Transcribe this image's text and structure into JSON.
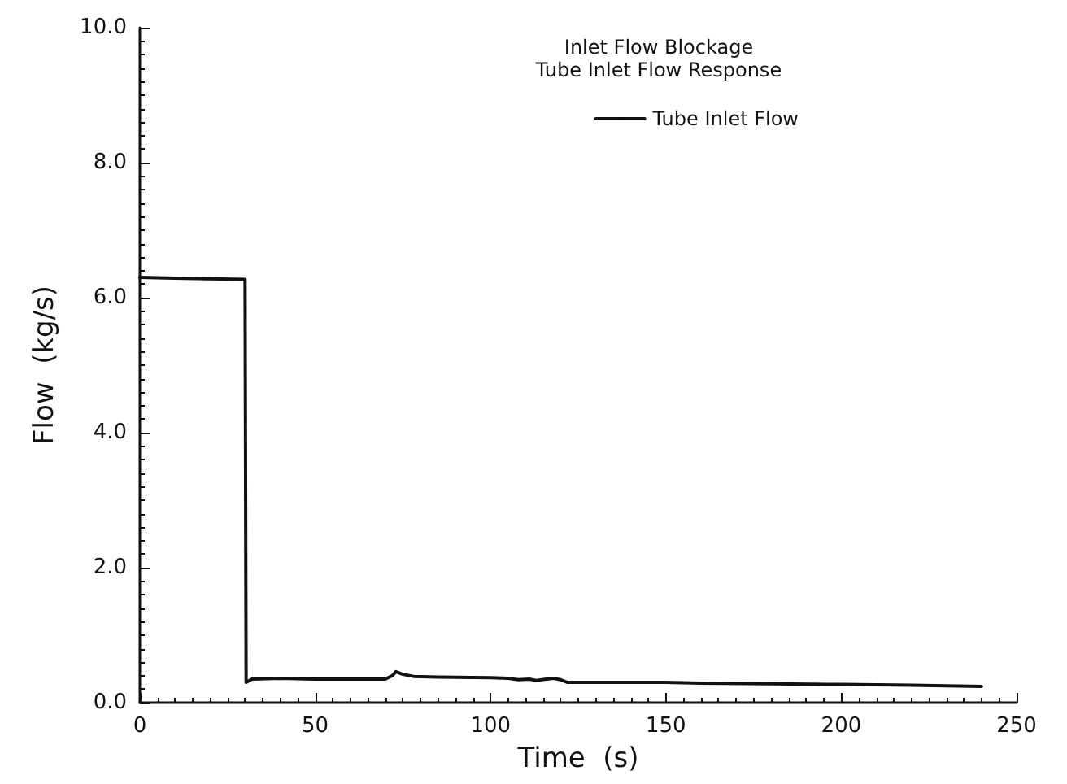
{
  "chart_data": {
    "type": "line",
    "title": "Inlet Flow Blockage",
    "subtitle": "Tube Inlet Flow Response",
    "xlabel": "Time  (s)",
    "ylabel": "Flow  (kg/s)",
    "series": [
      {
        "name": "Tube Inlet Flow",
        "color": "#111111",
        "x": [
          0,
          10,
          20,
          30,
          30.3,
          32,
          40,
          50,
          60,
          70,
          72,
          73,
          75,
          78,
          85,
          100,
          105,
          108,
          111,
          113,
          116,
          118,
          120,
          122,
          130,
          150,
          160,
          180,
          200,
          220,
          240
        ],
        "values": [
          6.3,
          6.29,
          6.28,
          6.27,
          0.3,
          0.35,
          0.36,
          0.35,
          0.35,
          0.35,
          0.4,
          0.46,
          0.42,
          0.39,
          0.38,
          0.37,
          0.36,
          0.34,
          0.35,
          0.33,
          0.35,
          0.36,
          0.34,
          0.3,
          0.3,
          0.3,
          0.29,
          0.28,
          0.27,
          0.26,
          0.24
        ]
      }
    ],
    "xlim": [
      0,
      250
    ],
    "xticks": [
      0,
      50,
      100,
      150,
      200,
      250
    ],
    "ylim": [
      0,
      10
    ],
    "yticks": [
      {
        "value": 0,
        "label": "0.0"
      },
      {
        "value": 2,
        "label": "2.0"
      },
      {
        "value": 4,
        "label": "4.0"
      },
      {
        "value": 6,
        "label": "6.0"
      },
      {
        "value": 8,
        "label": "8.0"
      },
      {
        "value": 10,
        "label": "10.0"
      }
    ],
    "legend": "top right",
    "grid": false,
    "marker": "none",
    "line_style": "solid"
  }
}
